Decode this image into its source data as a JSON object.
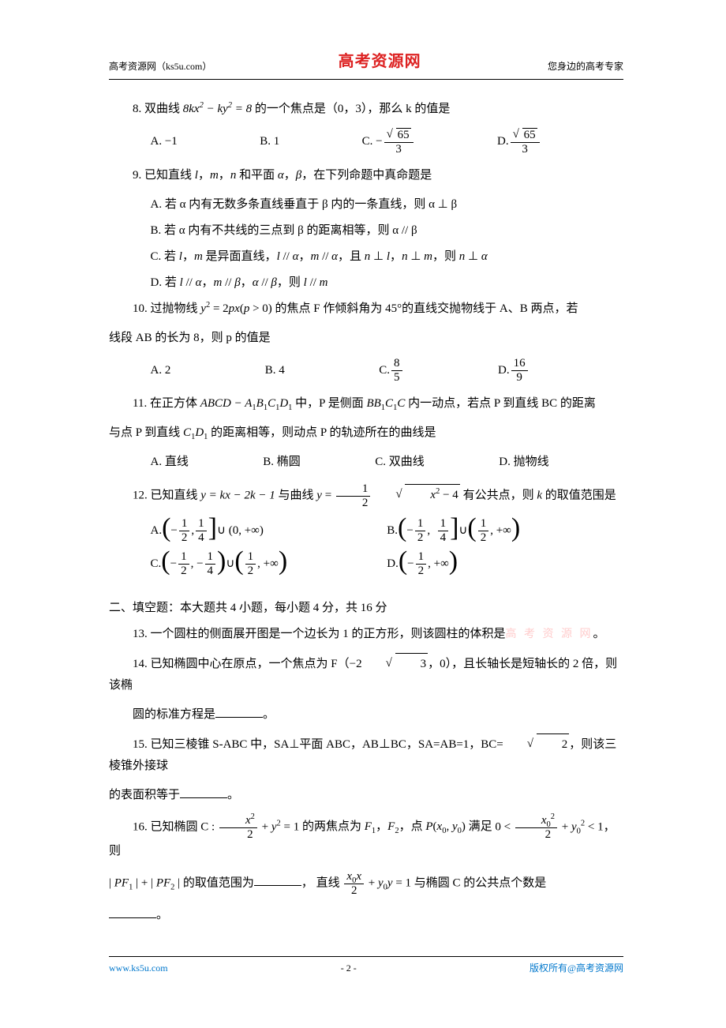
{
  "header": {
    "left": "高考资源网（ks5u.com）",
    "center": "高考资源网",
    "right": "您身边的高考专家"
  },
  "q8": {
    "text_pre": "8. 双曲线",
    "expr": "8kx² − ky² = 8",
    "text_post": "的一个焦点是（0，3），那么 k 的值是",
    "opts": {
      "A": "A. −1",
      "B": "B. 1",
      "C_pre": "C. −",
      "C_num": "√65",
      "C_den": "3",
      "D_pre": "D. ",
      "D_num": "√65",
      "D_den": "3"
    }
  },
  "q9": {
    "text": "9. 已知直线 l，m，n 和平面 α，β，在下列命题中真命题是",
    "A": "A. 若 α 内有无数多条直线垂直于 β 内的一条直线，则 α ⊥ β",
    "B": "B. 若 α 内有不共线的三点到 β 的距离相等，则 α // β",
    "C": "C. 若 l，m 是异面直线，l // α，m // α，且 n ⊥ l，n ⊥ m，则 n ⊥ α",
    "D": "D. 若 l // α，m // β，α // β，则 l // m"
  },
  "q10": {
    "text_pre": "10. 过抛物线",
    "expr": "y² = 2px (p > 0)",
    "text_post": "的焦点 F 作倾斜角为 45°的直线交抛物线于 A、B 两点，若线段 AB 的长为 8，则 p 的值是",
    "opts": {
      "A": "A. 2",
      "B": "B. 4",
      "C_pre": "C. ",
      "C_num": "8",
      "C_den": "5",
      "D_pre": "D. ",
      "D_num": "16",
      "D_den": "9"
    }
  },
  "q11": {
    "text_pre": "11. 在正方体",
    "expr": "ABCD − A₁B₁C₁D₁",
    "text_mid": " 中，P 是侧面 ",
    "expr2": "BB₁C₁C",
    "text_post": " 内一动点，若点 P 到直线 BC 的距离与点 P 到直线 C₁D₁ 的距离相等，则动点 P 的轨迹所在的曲线是",
    "opts": {
      "A": "A. 直线",
      "B": "B. 椭圆",
      "C": "C. 双曲线",
      "D": "D. 抛物线"
    }
  },
  "q12": {
    "text_pre": "12. 已知直线 ",
    "line_expr": "y = kx − 2k − 1",
    "text_mid": " 与曲线 ",
    "curve_pre": "y = ",
    "curve_num": "1",
    "curve_den": "2",
    "curve_sqrt": "x² − 4",
    "text_post": " 有公共点，则 k 的取值范围是",
    "A_l": "−",
    "A_l_num": "1",
    "A_l_den": "2",
    "A_r_num": "1",
    "A_r_den": "4",
    "A_rest": "∪ (0, +∞)",
    "B_l": "−",
    "B_l_num": "1",
    "B_l_den": "2",
    "B_r_num": "1",
    "B_r_den": "4",
    "B2_num": "1",
    "B2_den": "2",
    "B_rest": ", +∞",
    "C_l": "−",
    "C_l_num": "1",
    "C_l_den": "2",
    "C_r": "−",
    "C_r_num": "1",
    "C_r_den": "4",
    "C2_num": "1",
    "C2_den": "2",
    "C_rest": ", +∞",
    "D_l": "−",
    "D_l_num": "1",
    "D_l_den": "2",
    "D_rest": ", +∞"
  },
  "section2": "二、填空题：本大题共 4 小题，每小题 4 分，共 16 分",
  "q13_pre": "13. 一个圆柱的侧面展开图是一个边长为 1 的正方形，则该圆柱的体积是",
  "q13_wm": "高 考 资 源 网",
  "q13_post": "。",
  "q14_pre": "14. 已知椭圆中心在原点，一个焦点为 F（",
  "q14_val": "−2√3",
  "q14_mid": "，0），且长轴长是短轴长的 2 倍，则该椭圆的标准方程是",
  "q14_post": "。",
  "q15_pre": "15. 已知三棱锥 S-ABC 中，SA⊥平面 ABC，AB⊥BC，SA=AB=1，BC=",
  "q15_sqrt": "√2",
  "q15_mid": "，则该三棱锥外接球的表面积等于",
  "q15_post": "。",
  "q16": {
    "pre": "16. 已知椭圆 C : ",
    "eq_num": "x²",
    "eq_den": "2",
    "eq_rest": " + y² = 1",
    "mid1": " 的两焦点为 F₁，F₂，点 P(x₀, y₀) 满足 ",
    "ineq_pre": "0 < ",
    "ineq_num": "x₀²",
    "ineq_den": "2",
    "ineq_rest": " + y₀² < 1",
    "mid2": "，则 | PF₁ | + | PF₂ | 的取值范围为",
    "mid3": "，直线 ",
    "line_num": "x₀x",
    "line_den": "2",
    "line_rest": " + y₀y = 1",
    "mid4": " 与椭圆 C 的公共点个数是",
    "post": "。"
  },
  "footer": {
    "left": "www.ks5u.com",
    "center": "- 2 -",
    "right": "版权所有@高考资源网"
  }
}
